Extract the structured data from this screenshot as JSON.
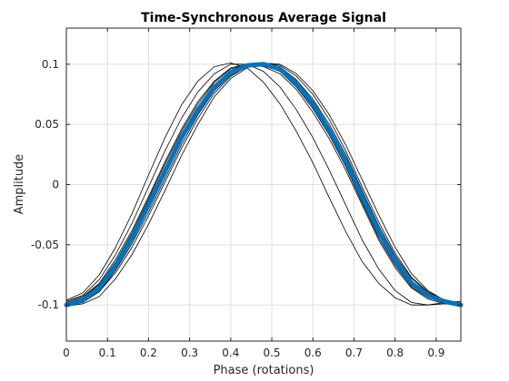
{
  "chart_data": {
    "type": "line",
    "title": "Time-Synchronous Average Signal",
    "xlabel": "Phase (rotations)",
    "ylabel": "Amplitude",
    "xlim": [
      0,
      0.96
    ],
    "ylim": [
      -0.13,
      0.13
    ],
    "xticks": [
      "0",
      "0.1",
      "0.2",
      "0.3",
      "0.4",
      "0.5",
      "0.6",
      "0.7",
      "0.8",
      "0.9"
    ],
    "yticks": [
      "-0.1",
      "-0.05",
      "0",
      "0.05",
      "0.1"
    ],
    "grid": true,
    "series": [
      {
        "role": "individual rotations (thin black)",
        "count": 12,
        "color": "#000000",
        "x": [
          0,
          0.04,
          0.08,
          0.12,
          0.16,
          0.2,
          0.24,
          0.28,
          0.32,
          0.36,
          0.4,
          0.44,
          0.48,
          0.52,
          0.56,
          0.6,
          0.64,
          0.68,
          0.72,
          0.76,
          0.8,
          0.84,
          0.88,
          0.92,
          0.96
        ],
        "y": [
          [
            -0.099,
            -0.095,
            -0.085,
            -0.066,
            -0.043,
            -0.015,
            0.013,
            0.04,
            0.063,
            0.082,
            0.093,
            0.099,
            0.1,
            0.096,
            0.083,
            0.066,
            0.044,
            0.018,
            -0.012,
            -0.041,
            -0.065,
            -0.083,
            -0.092,
            -0.097,
            -0.1
          ],
          [
            -0.1,
            -0.097,
            -0.087,
            -0.069,
            -0.047,
            -0.02,
            0.008,
            0.036,
            0.06,
            0.08,
            0.092,
            0.099,
            0.101,
            0.097,
            0.086,
            0.069,
            0.048,
            0.022,
            -0.008,
            -0.037,
            -0.061,
            -0.08,
            -0.091,
            -0.096,
            -0.099
          ],
          [
            -0.098,
            -0.094,
            -0.083,
            -0.064,
            -0.04,
            -0.012,
            0.017,
            0.044,
            0.067,
            0.085,
            0.096,
            0.1,
            0.099,
            0.094,
            0.081,
            0.063,
            0.041,
            0.015,
            -0.015,
            -0.044,
            -0.067,
            -0.085,
            -0.094,
            -0.098,
            -0.101
          ],
          [
            -0.101,
            -0.098,
            -0.089,
            -0.071,
            -0.049,
            -0.023,
            0.005,
            0.033,
            0.058,
            0.078,
            0.091,
            0.098,
            0.101,
            0.098,
            0.087,
            0.071,
            0.05,
            0.025,
            -0.005,
            -0.034,
            -0.059,
            -0.078,
            -0.09,
            -0.096,
            -0.099
          ],
          [
            -0.097,
            -0.093,
            -0.082,
            -0.062,
            -0.038,
            -0.01,
            0.019,
            0.046,
            0.069,
            0.086,
            0.097,
            0.1,
            0.098,
            0.092,
            0.079,
            0.06,
            0.038,
            0.012,
            -0.017,
            -0.046,
            -0.069,
            -0.086,
            -0.095,
            -0.099,
            -0.1
          ],
          [
            -0.1,
            -0.096,
            -0.086,
            -0.067,
            -0.044,
            -0.017,
            0.011,
            0.039,
            0.062,
            0.081,
            0.093,
            0.099,
            0.1,
            0.096,
            0.084,
            0.067,
            0.045,
            0.02,
            -0.01,
            -0.039,
            -0.063,
            -0.082,
            -0.092,
            -0.097,
            -0.1
          ],
          [
            -0.099,
            -0.096,
            -0.087,
            -0.068,
            -0.046,
            -0.019,
            0.009,
            0.037,
            0.061,
            0.081,
            0.093,
            0.1,
            0.1,
            0.095,
            0.085,
            0.068,
            0.047,
            0.021,
            -0.009,
            -0.038,
            -0.062,
            -0.081,
            -0.092,
            -0.097,
            -0.099
          ],
          [
            -0.1,
            -0.097,
            -0.086,
            -0.067,
            -0.045,
            -0.018,
            0.01,
            0.038,
            0.061,
            0.08,
            0.092,
            0.098,
            0.1,
            0.096,
            0.085,
            0.068,
            0.046,
            0.02,
            -0.01,
            -0.039,
            -0.063,
            -0.081,
            -0.091,
            -0.097,
            -0.1
          ],
          [
            -0.096,
            -0.09,
            -0.075,
            -0.052,
            -0.024,
            0.008,
            0.039,
            0.066,
            0.086,
            0.098,
            0.101,
            0.097,
            0.085,
            0.067,
            0.044,
            0.018,
            -0.011,
            -0.039,
            -0.064,
            -0.082,
            -0.094,
            -0.1,
            -0.1,
            -0.098,
            -0.097
          ],
          [
            -0.097,
            -0.092,
            -0.079,
            -0.058,
            -0.032,
            -0.002,
            0.028,
            0.055,
            0.077,
            0.092,
            0.1,
            0.1,
            0.094,
            0.081,
            0.062,
            0.039,
            0.012,
            -0.017,
            -0.046,
            -0.07,
            -0.088,
            -0.098,
            -0.1,
            -0.099,
            -0.098
          ],
          [
            -0.101,
            -0.099,
            -0.093,
            -0.078,
            -0.058,
            -0.033,
            -0.005,
            0.024,
            0.05,
            0.073,
            0.088,
            0.097,
            0.101,
            0.1,
            0.092,
            0.078,
            0.058,
            0.033,
            0.004,
            -0.025,
            -0.052,
            -0.074,
            -0.088,
            -0.096,
            -0.1
          ],
          [
            -0.099,
            -0.097,
            -0.089,
            -0.073,
            -0.052,
            -0.026,
            0.002,
            0.03,
            0.055,
            0.076,
            0.09,
            0.098,
            0.101,
            0.099,
            0.09,
            0.075,
            0.054,
            0.028,
            -0.002,
            -0.031,
            -0.057,
            -0.077,
            -0.089,
            -0.096,
            -0.099
          ]
        ]
      },
      {
        "role": "time-synchronous average (thick blue)",
        "color": "#0072BD",
        "x": [
          0,
          0.04,
          0.08,
          0.12,
          0.16,
          0.2,
          0.24,
          0.28,
          0.32,
          0.36,
          0.4,
          0.44,
          0.48,
          0.52,
          0.56,
          0.6,
          0.64,
          0.68,
          0.72,
          0.76,
          0.8,
          0.84,
          0.88,
          0.92,
          0.96
        ],
        "y": [
          -0.1,
          -0.096,
          -0.086,
          -0.067,
          -0.044,
          -0.017,
          0.011,
          0.039,
          0.062,
          0.081,
          0.093,
          0.099,
          0.1,
          0.096,
          0.084,
          0.067,
          0.045,
          0.02,
          -0.01,
          -0.039,
          -0.063,
          -0.082,
          -0.092,
          -0.097,
          -0.1
        ]
      }
    ]
  }
}
